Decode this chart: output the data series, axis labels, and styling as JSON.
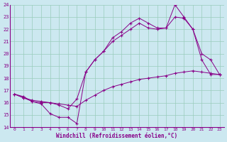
{
  "xlabel": "Windchill (Refroidissement éolien,°C)",
  "background_color": "#cce8f0",
  "line_color": "#880088",
  "grid_color": "#99ccbb",
  "xlim": [
    -0.5,
    23.5
  ],
  "ylim": [
    14,
    24
  ],
  "xticks": [
    0,
    1,
    2,
    3,
    4,
    5,
    6,
    7,
    8,
    9,
    10,
    11,
    12,
    13,
    14,
    15,
    16,
    17,
    18,
    19,
    20,
    21,
    22,
    23
  ],
  "yticks": [
    14,
    15,
    16,
    17,
    18,
    19,
    20,
    21,
    22,
    23,
    24
  ],
  "series": [
    {
      "x": [
        0,
        1,
        2,
        3,
        4,
        5,
        6,
        7,
        8,
        9,
        10,
        11,
        12,
        13,
        14,
        15,
        16,
        17,
        18,
        19,
        20,
        21,
        22,
        23
      ],
      "y": [
        16.7,
        16.5,
        16.1,
        15.9,
        15.1,
        14.8,
        14.8,
        14.3,
        18.5,
        19.5,
        20.2,
        21.3,
        21.8,
        22.5,
        22.9,
        22.5,
        22.1,
        22.1,
        24.0,
        23.0,
        22.0,
        19.5,
        18.3,
        18.3
      ]
    },
    {
      "x": [
        0,
        1,
        2,
        3,
        4,
        5,
        6,
        7,
        8,
        9,
        10,
        11,
        12,
        13,
        14,
        15,
        16,
        17,
        18,
        19,
        20,
        21,
        22,
        23
      ],
      "y": [
        16.7,
        16.4,
        16.1,
        16.0,
        16.0,
        15.8,
        15.5,
        16.3,
        18.5,
        19.5,
        20.2,
        21.0,
        21.5,
        22.0,
        22.5,
        22.1,
        22.0,
        22.1,
        23.0,
        22.9,
        22.0,
        20.0,
        19.5,
        18.3
      ]
    },
    {
      "x": [
        0,
        1,
        2,
        3,
        4,
        5,
        6,
        7,
        8,
        9,
        10,
        11,
        12,
        13,
        14,
        15,
        16,
        17,
        18,
        19,
        20,
        21,
        22,
        23
      ],
      "y": [
        16.7,
        16.4,
        16.2,
        16.1,
        16.0,
        15.9,
        15.8,
        15.7,
        16.2,
        16.6,
        17.0,
        17.3,
        17.5,
        17.7,
        17.9,
        18.0,
        18.1,
        18.2,
        18.4,
        18.5,
        18.6,
        18.5,
        18.4,
        18.3
      ]
    }
  ]
}
